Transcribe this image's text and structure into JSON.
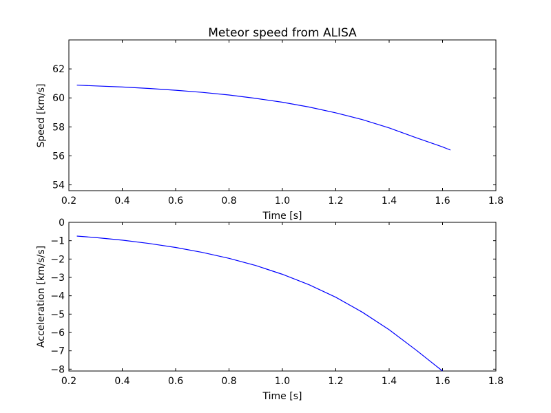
{
  "chart_data": [
    {
      "type": "line",
      "title": "Meteor speed from  ALISA",
      "xlabel": "Time [s]",
      "ylabel": "Speed [km/s]",
      "xlim": [
        0.2,
        1.8
      ],
      "ylim": [
        53.6,
        64.0
      ],
      "xticks": [
        0.2,
        0.4,
        0.6,
        0.8,
        1.0,
        1.2,
        1.4,
        1.6,
        1.8
      ],
      "xtick_labels": [
        "0.2",
        "0.4",
        "0.6",
        "0.8",
        "1.0",
        "1.2",
        "1.4",
        "1.6",
        "1.8"
      ],
      "yticks": [
        54,
        56,
        58,
        60,
        62
      ],
      "ytick_labels": [
        "54",
        "56",
        "58",
        "60",
        "62"
      ],
      "grid": false,
      "series": [
        {
          "color": "#0000ff",
          "x": [
            0.23,
            0.3,
            0.4,
            0.5,
            0.6,
            0.7,
            0.8,
            0.9,
            1.0,
            1.1,
            1.2,
            1.3,
            1.4,
            1.5,
            1.6,
            1.63
          ],
          "y": [
            60.88,
            60.83,
            60.75,
            60.65,
            60.53,
            60.38,
            60.2,
            59.97,
            59.7,
            59.37,
            58.97,
            58.5,
            57.93,
            57.26,
            56.62,
            56.4
          ]
        }
      ]
    },
    {
      "type": "line",
      "xlabel": "Time [s]",
      "ylabel": "Acceleration [km/s/s]",
      "xlim": [
        0.2,
        1.8
      ],
      "ylim": [
        -8.1,
        0.0
      ],
      "xticks": [
        0.2,
        0.4,
        0.6,
        0.8,
        1.0,
        1.2,
        1.4,
        1.6,
        1.8
      ],
      "xtick_labels": [
        "0.2",
        "0.4",
        "0.6",
        "0.8",
        "1.0",
        "1.2",
        "1.4",
        "1.6",
        "1.8"
      ],
      "yticks": [
        0,
        -1,
        -2,
        -3,
        -4,
        -5,
        -6,
        -7,
        -8
      ],
      "ytick_labels": [
        "0",
        "−1",
        "−2",
        "−3",
        "−4",
        "−5",
        "−6",
        "−7",
        "−8"
      ],
      "grid": false,
      "series": [
        {
          "color": "#0000ff",
          "x": [
            0.23,
            0.3,
            0.4,
            0.5,
            0.6,
            0.7,
            0.8,
            0.9,
            1.0,
            1.1,
            1.2,
            1.3,
            1.4,
            1.5,
            1.6
          ],
          "y": [
            -0.75,
            -0.83,
            -0.97,
            -1.15,
            -1.37,
            -1.64,
            -1.96,
            -2.35,
            -2.83,
            -3.4,
            -4.08,
            -4.9,
            -5.85,
            -6.95,
            -8.1
          ]
        }
      ]
    }
  ]
}
